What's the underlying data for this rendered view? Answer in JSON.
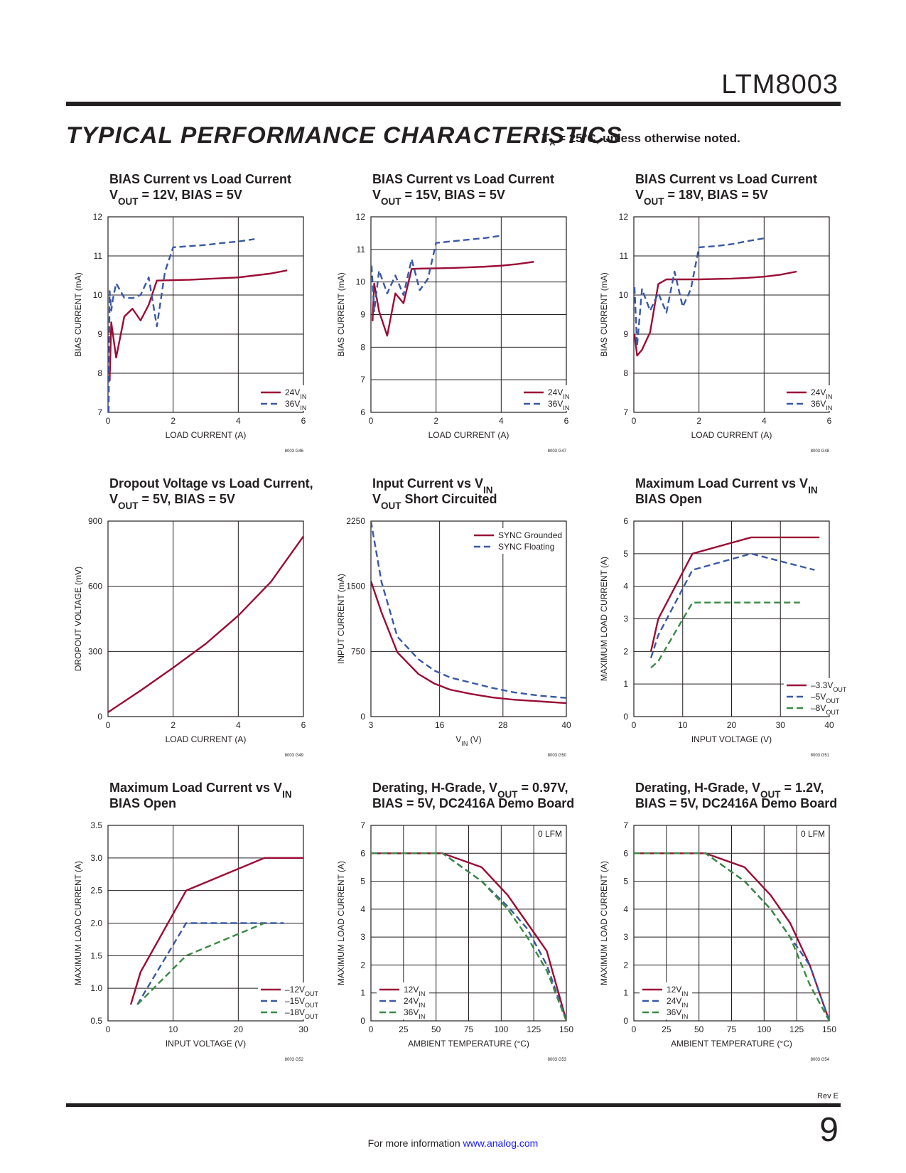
{
  "header": {
    "part_number": "LTM8003",
    "section_title": "TYPICAL PERFORMANCE CHARACTERISTICS",
    "conditions": "TA = 25°C, unless otherwise noted."
  },
  "footer": {
    "revision": "Rev E",
    "page_number": "9",
    "info_prefix": "For more information",
    "link": "www.analog.com"
  },
  "colors": {
    "red": "#9b0c35",
    "blue": "#3a58a5",
    "green": "#3a8a45",
    "ink": "#231f20"
  },
  "chart_data": [
    {
      "id": "g46",
      "type": "line",
      "title": [
        "BIAS Current vs Load Current",
        "VOUT = 12V, BIAS = 5V"
      ],
      "xlabel": "LOAD CURRENT (A)",
      "ylabel": "BIAS CURRENT (mA)",
      "xlim": [
        0,
        6
      ],
      "ylim": [
        7,
        12
      ],
      "xticks": [
        0,
        2,
        4,
        6
      ],
      "yticks": [
        7,
        8,
        9,
        10,
        11,
        12
      ],
      "code": "8003 G46",
      "legend": "bottom-right",
      "series": [
        {
          "name": "24VIN",
          "color": "red",
          "dash": false,
          "x": [
            0.05,
            0.1,
            0.15,
            0.25,
            0.5,
            0.75,
            1.0,
            1.25,
            1.5,
            2.0,
            2.5,
            3.0,
            3.5,
            4.0,
            4.5,
            5.0,
            5.5
          ],
          "y": [
            7.8,
            9.3,
            9.0,
            8.4,
            9.45,
            9.65,
            9.35,
            9.75,
            10.37,
            10.38,
            10.39,
            10.41,
            10.43,
            10.45,
            10.5,
            10.55,
            10.63
          ]
        },
        {
          "name": "36VIN",
          "color": "blue",
          "dash": true,
          "x": [
            0.02,
            0.05,
            0.1,
            0.15,
            0.25,
            0.5,
            0.75,
            1.0,
            1.25,
            1.5,
            1.75,
            2.0,
            2.5,
            3.0,
            3.5,
            4.0,
            4.5
          ],
          "y": [
            7.0,
            10.1,
            9.6,
            9.9,
            10.3,
            9.93,
            9.92,
            10.0,
            10.45,
            9.2,
            10.6,
            11.22,
            11.25,
            11.28,
            11.33,
            11.37,
            11.43
          ]
        }
      ]
    },
    {
      "id": "g47",
      "type": "line",
      "title": [
        "BIAS Current vs Load Current",
        "VOUT = 15V, BIAS = 5V"
      ],
      "xlabel": "LOAD CURRENT (A)",
      "ylabel": "BIAS CURRENT (mA)",
      "xlim": [
        0,
        6
      ],
      "ylim": [
        6,
        12
      ],
      "xticks": [
        0,
        2,
        4,
        6
      ],
      "yticks": [
        6,
        7,
        8,
        9,
        10,
        11,
        12
      ],
      "code": "8003 G47",
      "legend": "bottom-right",
      "series": [
        {
          "name": "24VIN",
          "color": "red",
          "dash": false,
          "x": [
            0.05,
            0.1,
            0.25,
            0.5,
            0.75,
            1.0,
            1.25,
            1.5,
            2.0,
            2.5,
            3.0,
            3.5,
            4.0,
            4.5,
            5.0
          ],
          "y": [
            8.8,
            9.95,
            9.1,
            8.35,
            9.65,
            9.35,
            10.4,
            10.41,
            10.42,
            10.43,
            10.45,
            10.47,
            10.5,
            10.55,
            10.62
          ]
        },
        {
          "name": "36VIN",
          "color": "blue",
          "dash": true,
          "x": [
            0.02,
            0.1,
            0.25,
            0.5,
            0.75,
            1.0,
            1.25,
            1.5,
            1.75,
            2.0,
            2.5,
            3.0,
            3.5,
            4.0
          ],
          "y": [
            10.5,
            9.1,
            10.35,
            9.65,
            10.2,
            9.6,
            10.7,
            9.75,
            10.1,
            11.2,
            11.25,
            11.3,
            11.35,
            11.42
          ]
        }
      ]
    },
    {
      "id": "g48",
      "type": "line",
      "title": [
        "BIAS Current vs Load Current",
        "VOUT = 18V, BIAS = 5V"
      ],
      "xlabel": "LOAD CURRENT (A)",
      "ylabel": "BIAS CURRENT (mA)",
      "xlim": [
        0,
        6
      ],
      "ylim": [
        7,
        12
      ],
      "xticks": [
        0,
        2,
        4,
        6
      ],
      "yticks": [
        7,
        8,
        9,
        10,
        11,
        12
      ],
      "code": "8003 G48",
      "legend": "bottom-right",
      "series": [
        {
          "name": "24VIN",
          "color": "red",
          "dash": false,
          "x": [
            0.02,
            0.1,
            0.25,
            0.5,
            0.75,
            1.0,
            1.5,
            2.0,
            2.5,
            3.0,
            3.5,
            4.0,
            4.5,
            5.0
          ],
          "y": [
            9.0,
            8.45,
            8.6,
            9.05,
            10.28,
            10.4,
            10.4,
            10.4,
            10.41,
            10.42,
            10.44,
            10.47,
            10.52,
            10.6
          ]
        },
        {
          "name": "36VIN",
          "color": "blue",
          "dash": true,
          "x": [
            0.02,
            0.1,
            0.25,
            0.5,
            0.75,
            1.0,
            1.25,
            1.5,
            1.75,
            2.0,
            2.5,
            3.0,
            3.5,
            4.0
          ],
          "y": [
            10.2,
            8.7,
            10.15,
            9.6,
            10.05,
            9.55,
            10.6,
            9.7,
            10.15,
            11.22,
            11.25,
            11.3,
            11.38,
            11.45
          ]
        }
      ]
    },
    {
      "id": "g49",
      "type": "line",
      "title": [
        "Dropout Voltage vs Load Current,",
        "VOUT = 5V, BIAS = 5V"
      ],
      "xlabel": "LOAD CURRENT (A)",
      "ylabel": "DROPOUT VOLTAGE (mV)",
      "xlim": [
        0,
        6
      ],
      "ylim": [
        0,
        900
      ],
      "xticks": [
        0,
        2,
        4,
        6
      ],
      "yticks": [
        0,
        300,
        600,
        900
      ],
      "code": "8003 G49",
      "legend": "none",
      "series": [
        {
          "name": "",
          "color": "red",
          "dash": false,
          "x": [
            0,
            1,
            2,
            3,
            4,
            5,
            6
          ],
          "y": [
            20,
            120,
            225,
            335,
            465,
            620,
            830
          ]
        }
      ]
    },
    {
      "id": "g50",
      "type": "line",
      "title": [
        "Input Current vs VIN",
        "VOUT Short Circuited"
      ],
      "xlabel": "VIN (V)",
      "ylabel": "INPUT CURRENT (mA)",
      "xlim": [
        3,
        40
      ],
      "ylim": [
        0,
        2250
      ],
      "xticks": [
        3,
        16,
        28,
        40
      ],
      "yticks": [
        0,
        750,
        1500,
        2250
      ],
      "code": "8003 G50",
      "legend": "top-right",
      "series": [
        {
          "name": "SYNC Grounded",
          "color": "red",
          "dash": false,
          "x": [
            3,
            5,
            8,
            12,
            15,
            18,
            22,
            26,
            30,
            35,
            40
          ],
          "y": [
            1560,
            1200,
            740,
            490,
            380,
            310,
            260,
            220,
            195,
            175,
            155
          ]
        },
        {
          "name": "SYNC Floating",
          "color": "blue",
          "dash": true,
          "x": [
            3,
            5,
            8,
            12,
            15,
            18,
            22,
            26,
            30,
            35,
            40
          ],
          "y": [
            2250,
            1550,
            920,
            660,
            530,
            450,
            390,
            330,
            280,
            240,
            215
          ]
        }
      ]
    },
    {
      "id": "g51",
      "type": "line",
      "title": [
        "Maximum Load Current vs VIN",
        "BIAS Open"
      ],
      "xlabel": "INPUT VOLTAGE (V)",
      "ylabel": "MAXIMUM LOAD CURRENT (A)",
      "xlim": [
        0,
        40
      ],
      "ylim": [
        0,
        6
      ],
      "xticks": [
        0,
        10,
        20,
        30,
        40
      ],
      "yticks": [
        0,
        1,
        2,
        3,
        4,
        5,
        6
      ],
      "code": "8003 G51",
      "legend": "bottom-right",
      "series": [
        {
          "name": "–3.3VOUT",
          "color": "red",
          "dash": false,
          "x": [
            3.5,
            5,
            12,
            24,
            38
          ],
          "y": [
            2.0,
            3.0,
            5.0,
            5.5,
            5.5
          ]
        },
        {
          "name": "–5VOUT",
          "color": "blue",
          "dash": true,
          "x": [
            3.5,
            5,
            12,
            24,
            37
          ],
          "y": [
            1.8,
            2.5,
            4.5,
            5.0,
            4.5
          ]
        },
        {
          "name": "–8VOUT",
          "color": "green",
          "dash": true,
          "x": [
            3.5,
            5,
            12,
            24,
            34
          ],
          "y": [
            1.5,
            1.7,
            3.5,
            3.5,
            3.5
          ]
        }
      ]
    },
    {
      "id": "g52",
      "type": "line",
      "title": [
        "Maximum Load Current vs VIN",
        "BIAS Open"
      ],
      "xlabel": "INPUT VOLTAGE (V)",
      "ylabel": "MAXIMUM LOAD CURRENT (A)",
      "xlim": [
        0,
        30
      ],
      "ylim": [
        0.5,
        3.5
      ],
      "xticks": [
        0,
        10,
        20,
        30
      ],
      "yticks": [
        0.5,
        1.0,
        1.5,
        2.0,
        2.5,
        3.0,
        3.5
      ],
      "ytick_labels": [
        "0.5",
        "1.0",
        "1.5",
        "2.0",
        "2.5",
        "3.0",
        "3.5"
      ],
      "code": "8003 G52",
      "legend": "bottom-right",
      "series": [
        {
          "name": "–12VOUT",
          "color": "red",
          "dash": false,
          "x": [
            3.5,
            5,
            12,
            24,
            30
          ],
          "y": [
            0.75,
            1.25,
            2.5,
            3.0,
            3.0
          ]
        },
        {
          "name": "–15VOUT",
          "color": "blue",
          "dash": true,
          "x": [
            4.5,
            12,
            27
          ],
          "y": [
            0.75,
            2.0,
            2.0
          ]
        },
        {
          "name": "–18VOUT",
          "color": "green",
          "dash": true,
          "x": [
            4.5,
            12,
            24
          ],
          "y": [
            0.75,
            1.5,
            2.0
          ]
        }
      ]
    },
    {
      "id": "g53",
      "type": "line",
      "title": [
        "Derating, H-Grade, VOUT = 0.97V,",
        "BIAS = 5V, DC2416A Demo Board"
      ],
      "xlabel": "AMBIENT TEMPERATURE (°C)",
      "ylabel": "MAXIMUM LOAD CURRENT (A)",
      "xlim": [
        0,
        150
      ],
      "ylim": [
        0,
        7
      ],
      "xticks": [
        0,
        25,
        50,
        75,
        100,
        125,
        150
      ],
      "yticks": [
        0,
        1,
        2,
        3,
        4,
        5,
        6,
        7
      ],
      "code": "8003 G53",
      "legend": "bottom-left",
      "note": "0 LFM",
      "series": [
        {
          "name": "12VIN",
          "color": "red",
          "dash": false,
          "x": [
            0,
            55,
            85,
            105,
            120,
            135,
            150
          ],
          "y": [
            6,
            6,
            5.5,
            4.5,
            3.5,
            2.5,
            0
          ]
        },
        {
          "name": "24VIN",
          "color": "blue",
          "dash": true,
          "x": [
            0,
            55,
            85,
            105,
            120,
            135,
            150
          ],
          "y": [
            6,
            6,
            5.0,
            4.1,
            3.3,
            2.0,
            0
          ]
        },
        {
          "name": "36VIN",
          "color": "green",
          "dash": true,
          "x": [
            0,
            55,
            85,
            105,
            120,
            135,
            150
          ],
          "y": [
            6,
            6,
            5.0,
            4.0,
            3.0,
            1.8,
            0
          ]
        }
      ]
    },
    {
      "id": "g54",
      "type": "line",
      "title": [
        "Derating, H-Grade, VOUT = 1.2V,",
        "BIAS = 5V, DC2416A Demo Board"
      ],
      "xlabel": "AMBIENT TEMPERATURE (°C)",
      "ylabel": "MAXIMUM LOAD CURRENT (A)",
      "xlim": [
        0,
        150
      ],
      "ylim": [
        0,
        7
      ],
      "xticks": [
        0,
        25,
        50,
        75,
        100,
        125,
        150
      ],
      "yticks": [
        0,
        1,
        2,
        3,
        4,
        5,
        6,
        7
      ],
      "code": "8003 G54",
      "legend": "bottom-left",
      "note": "0 LFM",
      "series": [
        {
          "name": "12VIN",
          "color": "red",
          "dash": false,
          "x": [
            0,
            55,
            85,
            105,
            120,
            135,
            150
          ],
          "y": [
            6,
            6,
            5.5,
            4.5,
            3.5,
            2.0,
            0
          ]
        },
        {
          "name": "24VIN",
          "color": "blue",
          "dash": true,
          "x": [
            0,
            55,
            85,
            105,
            120,
            135,
            150
          ],
          "y": [
            6,
            6,
            5.0,
            4.0,
            3.0,
            2.0,
            0
          ]
        },
        {
          "name": "36VIN",
          "color": "green",
          "dash": true,
          "x": [
            0,
            55,
            85,
            105,
            120,
            135,
            150
          ],
          "y": [
            6,
            6,
            5.0,
            4.0,
            3.0,
            1.3,
            0
          ]
        }
      ]
    }
  ]
}
